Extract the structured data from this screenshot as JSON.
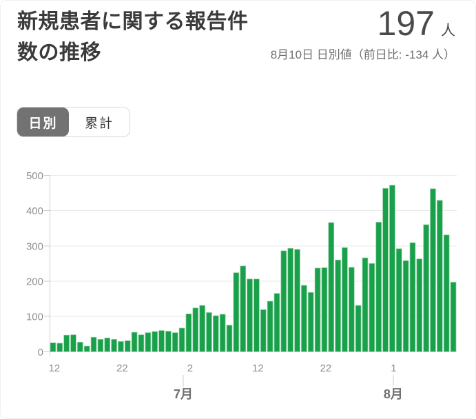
{
  "header": {
    "title": "新規患者に関する報告件数の推移",
    "value": "197",
    "unit": "人",
    "subtitle": "8月10日 日別値（前日比: -134 人）"
  },
  "toggle": {
    "options": [
      {
        "label": "日別",
        "selected": true
      },
      {
        "label": "累計",
        "selected": false
      }
    ]
  },
  "chart_data": {
    "type": "bar",
    "title": "新規患者に関する報告件数の推移",
    "xlabel": "",
    "ylabel": "",
    "ylim": [
      0,
      500
    ],
    "yticks": [
      0,
      100,
      200,
      300,
      400,
      500
    ],
    "grid": true,
    "legend": "none",
    "bar_color": "#18A04B",
    "bar_edge_color": "#8FCF9F",
    "grid_color": "#e9e9e9",
    "axis_color": "#cccccc",
    "tick_label_color": "#8e8e8e",
    "month_label_color": "#6f6f6f",
    "categories": [
      "6/12",
      "6/13",
      "6/14",
      "6/15",
      "6/16",
      "6/17",
      "6/18",
      "6/19",
      "6/20",
      "6/21",
      "6/22",
      "6/23",
      "6/24",
      "6/25",
      "6/26",
      "6/27",
      "6/28",
      "6/29",
      "6/30",
      "7/1",
      "7/2",
      "7/3",
      "7/4",
      "7/5",
      "7/6",
      "7/7",
      "7/8",
      "7/9",
      "7/10",
      "7/11",
      "7/12",
      "7/13",
      "7/14",
      "7/15",
      "7/16",
      "7/17",
      "7/18",
      "7/19",
      "7/20",
      "7/21",
      "7/22",
      "7/23",
      "7/24",
      "7/25",
      "7/26",
      "7/27",
      "7/28",
      "7/29",
      "7/30",
      "7/31",
      "8/1",
      "8/2",
      "8/3",
      "8/4",
      "8/5",
      "8/6",
      "8/7",
      "8/8",
      "8/9",
      "8/10"
    ],
    "values": [
      25,
      24,
      47,
      48,
      27,
      16,
      41,
      35,
      39,
      35,
      29,
      31,
      55,
      48,
      54,
      57,
      60,
      58,
      54,
      67,
      107,
      124,
      131,
      111,
      102,
      106,
      75,
      224,
      243,
      206,
      206,
      119,
      143,
      165,
      286,
      293,
      290,
      188,
      168,
      237,
      238,
      366,
      260,
      295,
      239,
      131,
      266,
      250,
      367,
      463,
      472,
      292,
      258,
      309,
      263,
      360,
      462,
      429,
      331,
      197
    ],
    "x_tick_labels": [
      {
        "index": 0,
        "label": "12"
      },
      {
        "index": 10,
        "label": "22"
      },
      {
        "index": 20,
        "label": "2"
      },
      {
        "index": 30,
        "label": "12"
      },
      {
        "index": 40,
        "label": "22"
      },
      {
        "index": 50,
        "label": "1"
      }
    ],
    "month_labels": [
      {
        "pos": 19.7,
        "label": "7月"
      },
      {
        "pos": 50.65,
        "label": "8月"
      }
    ]
  }
}
